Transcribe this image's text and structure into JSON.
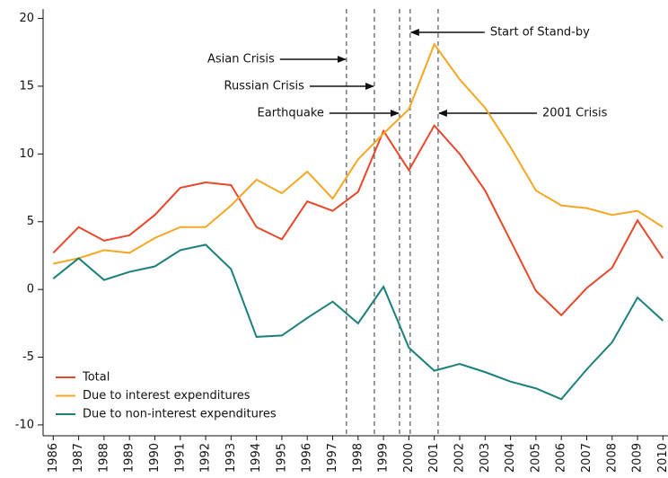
{
  "chart_data": {
    "type": "line",
    "x": [
      1986,
      1987,
      1988,
      1989,
      1990,
      1991,
      1992,
      1993,
      1994,
      1995,
      1996,
      1997,
      1998,
      1999,
      2000,
      2001,
      2002,
      2003,
      2004,
      2005,
      2006,
      2007,
      2008,
      2009,
      2010
    ],
    "series": [
      {
        "name": "Total",
        "color": "#e8472a",
        "values": [
          2.7,
          4.6,
          3.6,
          4.0,
          5.5,
          7.5,
          7.9,
          7.7,
          4.6,
          3.7,
          6.5,
          5.8,
          7.2,
          11.7,
          8.8,
          12.1,
          10.0,
          7.3,
          3.6,
          -0.1,
          -1.9,
          0.1,
          1.6,
          5.1,
          2.3
        ]
      },
      {
        "name": "Due to interest expenditures",
        "color": "#f5a623",
        "values": [
          1.9,
          2.3,
          2.9,
          2.7,
          3.8,
          4.6,
          4.6,
          6.2,
          8.1,
          7.1,
          8.7,
          6.7,
          9.6,
          11.5,
          13.3,
          18.1,
          15.5,
          13.4,
          10.5,
          7.3,
          6.2,
          6.0,
          5.5,
          5.8,
          4.6
        ]
      },
      {
        "name": "Due to non-interest expenditures",
        "color": "#1a7f7a",
        "values": [
          0.8,
          2.3,
          0.7,
          1.3,
          1.7,
          2.9,
          3.3,
          1.5,
          -3.5,
          -3.4,
          -2.1,
          -0.9,
          -2.5,
          0.2,
          -4.3,
          -6.0,
          -5.5,
          -6.1,
          -6.8,
          -7.3,
          -8.1,
          -5.9,
          -3.9,
          -0.6,
          -2.3
        ]
      }
    ],
    "events": [
      {
        "x": 1997.54,
        "label": "Asian Crisis"
      },
      {
        "x": 1998.64,
        "label": "Russian Crisis"
      },
      {
        "x": 1999.63,
        "label": "Earthquake"
      },
      {
        "x": 2000.05,
        "label": "Start of Stand-by"
      },
      {
        "x": 2001.15,
        "label": "2001 Crisis"
      }
    ],
    "xlim": [
      1985.6,
      2010.2
    ],
    "xticks": [
      1986,
      1987,
      1988,
      1989,
      1990,
      1991,
      1992,
      1993,
      1994,
      1995,
      1996,
      1997,
      1998,
      1999,
      2000,
      2001,
      2002,
      2003,
      2004,
      2005,
      2006,
      2007,
      2008,
      2009,
      2010
    ],
    "ylim": [
      -10.8,
      20.7
    ],
    "yticks": [
      -10,
      -5,
      0,
      5,
      10,
      15,
      20
    ],
    "legend": "lower left"
  }
}
